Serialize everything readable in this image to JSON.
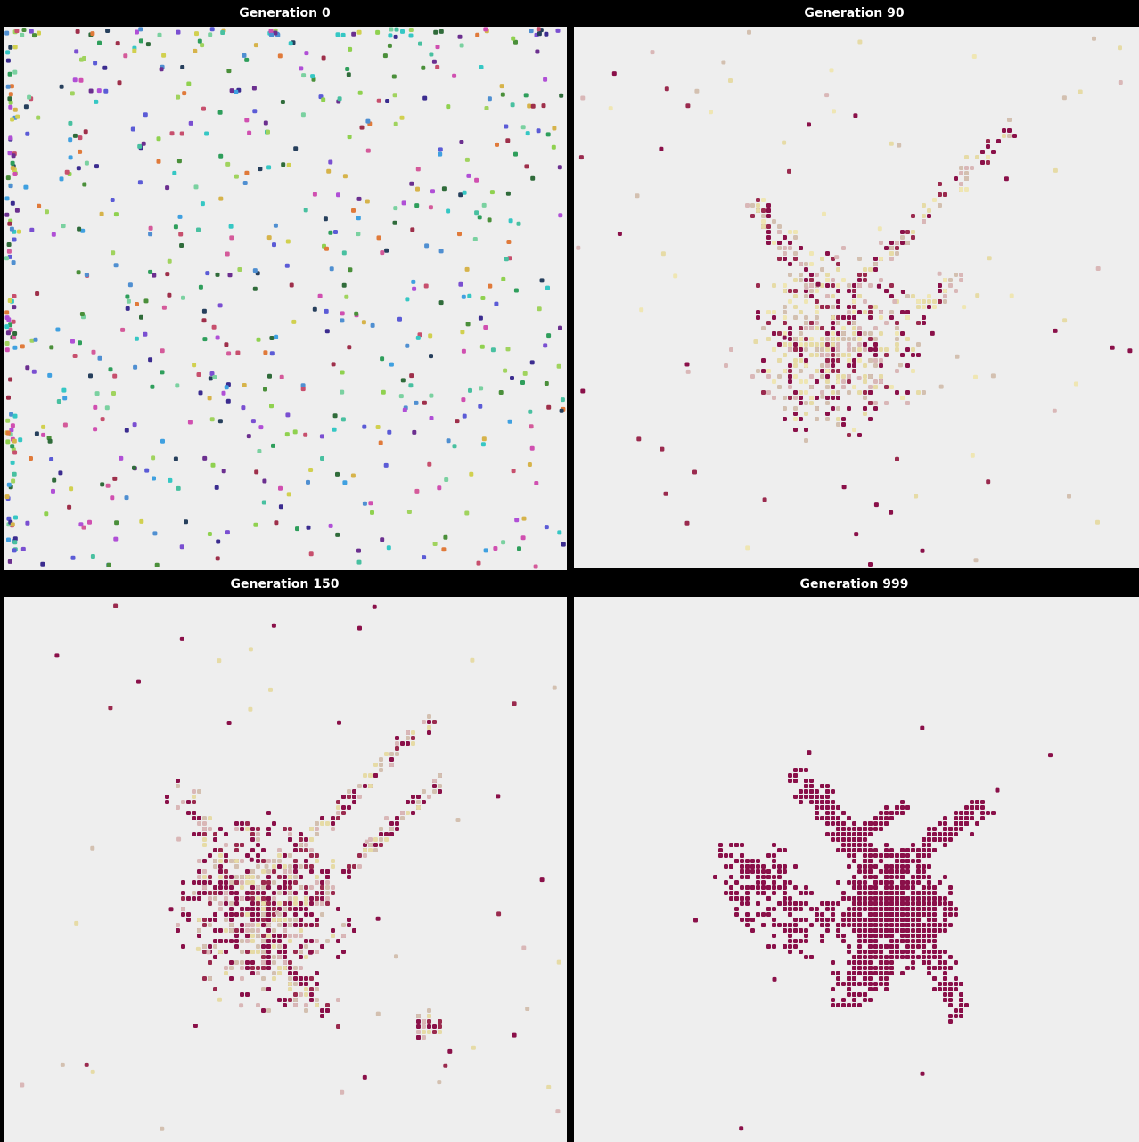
{
  "panels": [
    {
      "title": "Generation 0",
      "generation": 0,
      "population": "diverse",
      "palette": [
        "#3b2c8f",
        "#2e9e5b",
        "#8fd14f",
        "#d04fb0",
        "#35c7c4",
        "#7a4fd1",
        "#c74f6d",
        "#4f8fd1",
        "#2f6b3a",
        "#a0d35e",
        "#d6b34a",
        "#6b2f8f",
        "#48c0a0",
        "#d45a9a",
        "#5b5bd6",
        "#263f5c",
        "#9e2f4a",
        "#e07a3a",
        "#3fa0e0",
        "#7ad1a0",
        "#b04fd6",
        "#4a8f3a",
        "#d1d04f"
      ]
    },
    {
      "title": "Generation 90",
      "generation": 90,
      "population": "converging",
      "palette": [
        "#8a1049",
        "#8a1049",
        "#9a2a4e",
        "#d9b7b7",
        "#e6dba6",
        "#d3c0b0",
        "#efe6b3"
      ]
    },
    {
      "title": "Generation 150",
      "generation": 150,
      "population": "clustered",
      "palette": [
        "#8a1049",
        "#8a1049",
        "#8a1049",
        "#9a2a4e",
        "#d9b7b7",
        "#e6dba6",
        "#d3c0b0"
      ]
    },
    {
      "title": "Generation 999",
      "generation": 999,
      "population": "converged",
      "palette": [
        "#8a1049"
      ]
    }
  ]
}
